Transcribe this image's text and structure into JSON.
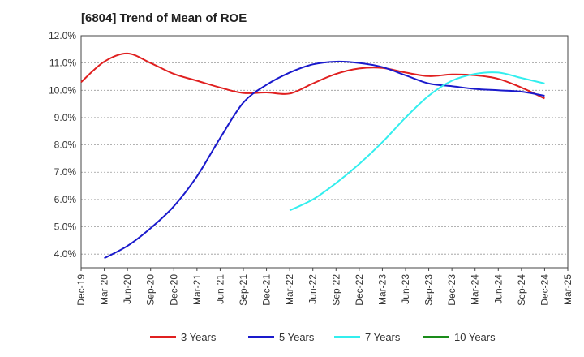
{
  "chart_data": {
    "type": "line",
    "title": "[6804]  Trend of Mean of ROE",
    "x_ticks": [
      "Dec-19",
      "Mar-20",
      "Jun-20",
      "Sep-20",
      "Dec-20",
      "Mar-21",
      "Jun-21",
      "Sep-21",
      "Dec-21",
      "Mar-22",
      "Jun-22",
      "Sep-22",
      "Dec-22",
      "Mar-23",
      "Jun-23",
      "Sep-23",
      "Dec-23",
      "Mar-24",
      "Jun-24",
      "Sep-24",
      "Dec-24",
      "Mar-25"
    ],
    "y_ticks": [
      "4.0%",
      "5.0%",
      "6.0%",
      "7.0%",
      "8.0%",
      "9.0%",
      "10.0%",
      "11.0%",
      "12.0%"
    ],
    "ylim": [
      3.5,
      12.0
    ],
    "y_unit": "%",
    "grid": "horizontal dashed",
    "legend_position": "bottom",
    "series": [
      {
        "name": "3 Years",
        "color": "#e02020",
        "values": [
          10.3,
          11.05,
          11.35,
          11.0,
          10.6,
          10.35,
          10.1,
          9.9,
          9.92,
          9.88,
          10.25,
          10.6,
          10.8,
          10.82,
          10.65,
          10.52,
          10.58,
          10.55,
          10.42,
          10.1,
          9.7,
          null
        ]
      },
      {
        "name": "5 Years",
        "color": "#1a1acc",
        "values": [
          null,
          3.85,
          4.3,
          4.95,
          5.75,
          6.85,
          8.25,
          9.55,
          10.2,
          10.65,
          10.95,
          11.05,
          11.0,
          10.85,
          10.55,
          10.25,
          10.15,
          10.05,
          10.0,
          9.95,
          9.8,
          null
        ]
      },
      {
        "name": "7 Years",
        "color": "#33eeee",
        "values": [
          null,
          null,
          null,
          null,
          null,
          null,
          null,
          null,
          null,
          5.6,
          6.0,
          6.6,
          7.3,
          8.1,
          9.0,
          9.8,
          10.35,
          10.6,
          10.65,
          10.45,
          10.25,
          null
        ]
      },
      {
        "name": "10 Years",
        "color": "#1a8c1a",
        "values": []
      }
    ]
  }
}
